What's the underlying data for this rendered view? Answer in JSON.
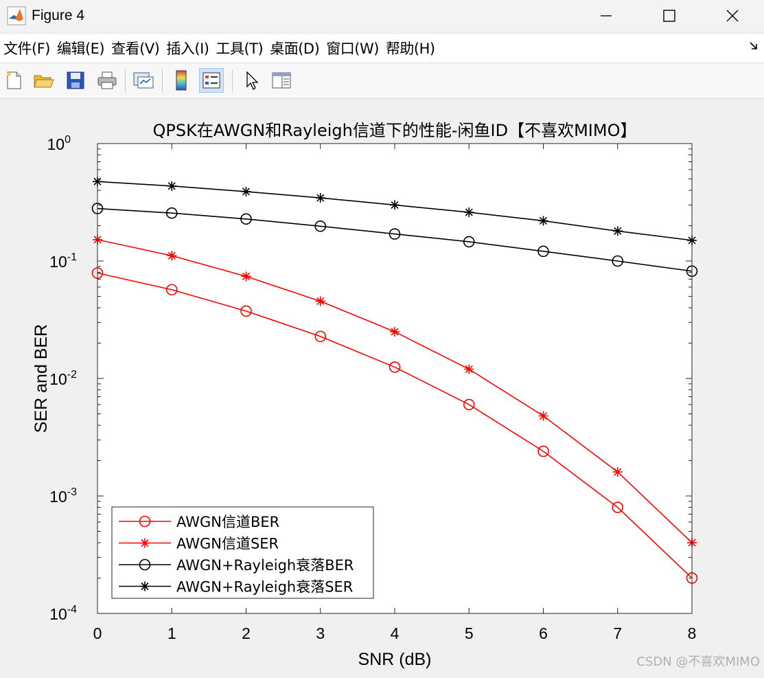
{
  "window": {
    "title": "Figure 4"
  },
  "menu": [
    "文件(F)",
    "编辑(E)",
    "查看(V)",
    "插入(I)",
    "工具(T)",
    "桌面(D)",
    "窗口(W)",
    "帮助(H)"
  ],
  "toolbar": {
    "buttons": [
      "new-figure",
      "open-file",
      "save",
      "print",
      "link-plot",
      "colorbar",
      "legend",
      "edit-plot",
      "property-inspector"
    ]
  },
  "watermark": "CSDN @不喜欢MIMO",
  "chart_data": {
    "type": "line",
    "title": "QPSK在AWGN和Rayleigh信道下的性能-闲鱼ID【不喜欢MIMO】",
    "xlabel": "SNR (dB)",
    "ylabel": "SER and BER",
    "yscale": "log",
    "xlim": [
      0,
      8
    ],
    "ylim": [
      0.0001,
      1
    ],
    "x": [
      0,
      1,
      2,
      3,
      4,
      5,
      6,
      7,
      8
    ],
    "xticks": [
      "0",
      "1",
      "2",
      "3",
      "4",
      "5",
      "6",
      "7",
      "8"
    ],
    "yticks": [
      {
        "base": "10",
        "exp": "0"
      },
      {
        "base": "10",
        "exp": "-1"
      },
      {
        "base": "10",
        "exp": "-2"
      },
      {
        "base": "10",
        "exp": "-3"
      },
      {
        "base": "10",
        "exp": "-4"
      }
    ],
    "grid": false,
    "legend_location": "bottom-left",
    "series": [
      {
        "name": "AWGN信道BER",
        "color": "#ff0000",
        "marker": "circle",
        "values": [
          0.079,
          0.057,
          0.0375,
          0.0228,
          0.0125,
          0.006,
          0.0024,
          0.0008,
          0.0002
        ]
      },
      {
        "name": "AWGN信道SER",
        "color": "#ff0000",
        "marker": "asterisk",
        "values": [
          0.152,
          0.111,
          0.074,
          0.0455,
          0.025,
          0.012,
          0.0048,
          0.0016,
          0.0004
        ]
      },
      {
        "name": "AWGN+Rayleigh衰落BER",
        "color": "#000000",
        "marker": "circle",
        "values": [
          0.28,
          0.256,
          0.228,
          0.198,
          0.17,
          0.146,
          0.121,
          0.1,
          0.082
        ]
      },
      {
        "name": "AWGN+Rayleigh衰落SER",
        "color": "#000000",
        "marker": "asterisk",
        "values": [
          0.475,
          0.435,
          0.39,
          0.345,
          0.3,
          0.26,
          0.22,
          0.18,
          0.15
        ]
      }
    ]
  }
}
